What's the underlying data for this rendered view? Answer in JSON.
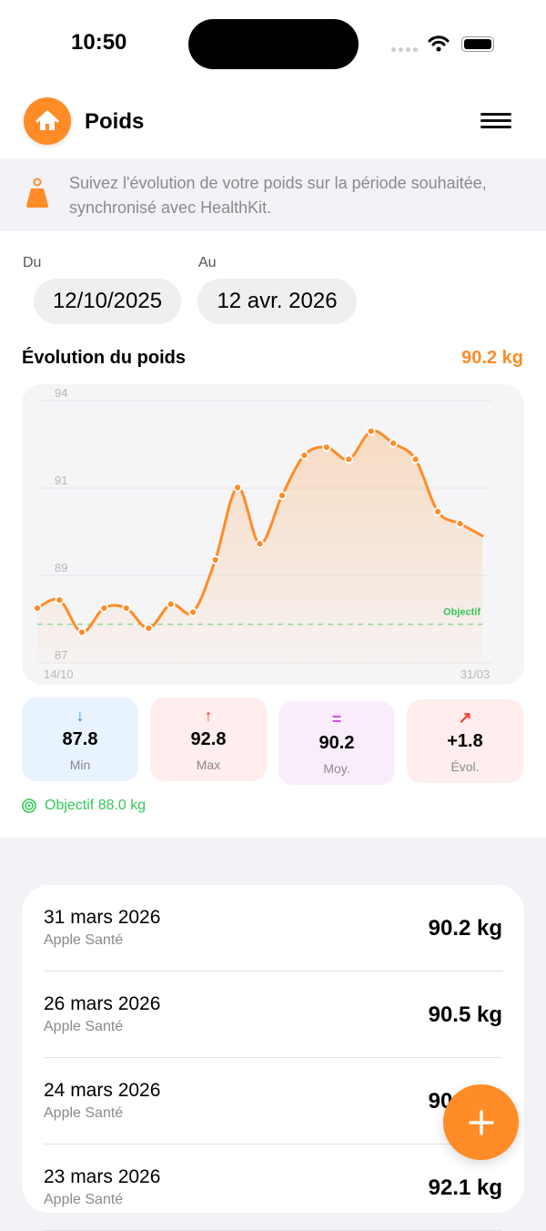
{
  "status": {
    "time": "10:50"
  },
  "header": {
    "title": "Poids"
  },
  "info": {
    "text": "Suivez l'évolution de votre poids sur la période souhaitée, synchronisé avec HealthKit."
  },
  "period": {
    "from_label": "Du",
    "from_value": "12/10/2025",
    "to_label": "Au",
    "to_value": "12 avr. 2026"
  },
  "chart_section": {
    "title": "Évolution du poids",
    "current": "90.2 kg"
  },
  "chart_data": {
    "type": "area",
    "y_tick_labels": [
      "94",
      "91",
      "89",
      "87"
    ],
    "x_tick_labels": [
      "14/10",
      "31/03"
    ],
    "ylim": [
      87.04,
      93.56
    ],
    "grid": true,
    "values": [
      88.4,
      88.6,
      87.8,
      88.4,
      88.4,
      87.9,
      88.5,
      88.3,
      89.6,
      91.4,
      90.0,
      91.2,
      92.2,
      92.4,
      92.1,
      92.8,
      92.5,
      92.1,
      90.8,
      90.5,
      90.2
    ],
    "goal": {
      "label": "Objectif",
      "value": 88.0
    },
    "line_color": "#ff8c26",
    "goal_color": "#34c759"
  },
  "stats": [
    {
      "icon": "↓",
      "value": "87.8",
      "label": "Min",
      "color": "#1a8cff",
      "bg": "#e8f3ff"
    },
    {
      "icon": "↑",
      "value": "92.8",
      "label": "Max",
      "color": "#ff3b30",
      "bg": "#ffeeed"
    },
    {
      "icon": "=",
      "value": "90.2",
      "label": "Moy.",
      "color": "#d64fe0",
      "bg": "#f9edfc"
    },
    {
      "icon": "↗",
      "value": "+1.8",
      "label": "Évol.",
      "color": "#ff3b30",
      "bg": "#ffeeed"
    }
  ],
  "goal_text": "Objectif 88.0 kg",
  "entries": [
    {
      "date": "31 mars 2026",
      "source": "Apple Santé",
      "weight": "90.2 kg"
    },
    {
      "date": "26 mars 2026",
      "source": "Apple Santé",
      "weight": "90.5 kg"
    },
    {
      "date": "24 mars 2026",
      "source": "Apple Santé",
      "weight": "90.8 kg"
    },
    {
      "date": "23 mars 2026",
      "source": "Apple Santé",
      "weight": "92.1 kg"
    }
  ]
}
